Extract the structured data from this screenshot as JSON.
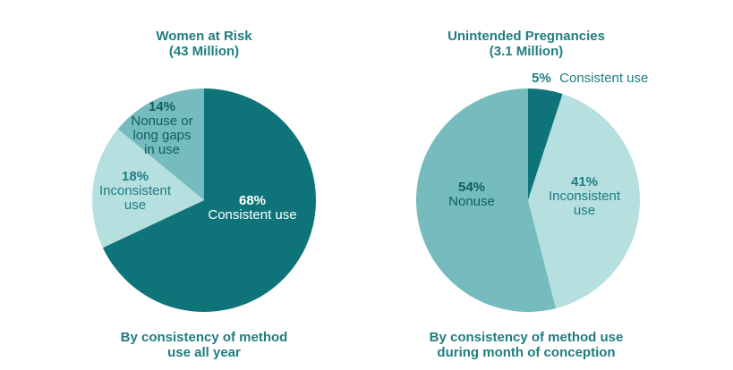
{
  "chart_data": [
    {
      "type": "pie",
      "title": "Women at Risk",
      "subtitle": "(43 Million)",
      "caption": [
        "By consistency of method",
        "use all year"
      ],
      "slices": [
        {
          "label_pct": "68%",
          "label_lines": [
            "Consistent use"
          ],
          "value": 68,
          "color": "#0f7479",
          "text_color": "#ffffff"
        },
        {
          "label_pct": "18%",
          "label_lines": [
            "Inconsistent",
            "use"
          ],
          "value": 18,
          "color": "#b6dfe0",
          "text_color": "#1f7d80"
        },
        {
          "label_pct": "14%",
          "label_lines": [
            "Nonuse or",
            "long gaps",
            "in use"
          ],
          "value": 14,
          "color": "#76bcbf",
          "text_color": "#0d5e62"
        }
      ]
    },
    {
      "type": "pie",
      "title": "Unintended Pregnancies",
      "subtitle": "(3.1 Million)",
      "caption": [
        "By consistency of method use",
        "during month of conception"
      ],
      "slices": [
        {
          "label_pct": "5%",
          "label_lines": [
            "Consistent use"
          ],
          "value": 5,
          "color": "#0f7479",
          "text_color": "#1f7d80"
        },
        {
          "label_pct": "41%",
          "label_lines": [
            "Inconsistent",
            "use"
          ],
          "value": 41,
          "color": "#b6dfe0",
          "text_color": "#1f7d80"
        },
        {
          "label_pct": "54%",
          "label_lines": [
            "Nonuse"
          ],
          "value": 54,
          "color": "#76bcbf",
          "text_color": "#0d5e62"
        }
      ]
    }
  ]
}
